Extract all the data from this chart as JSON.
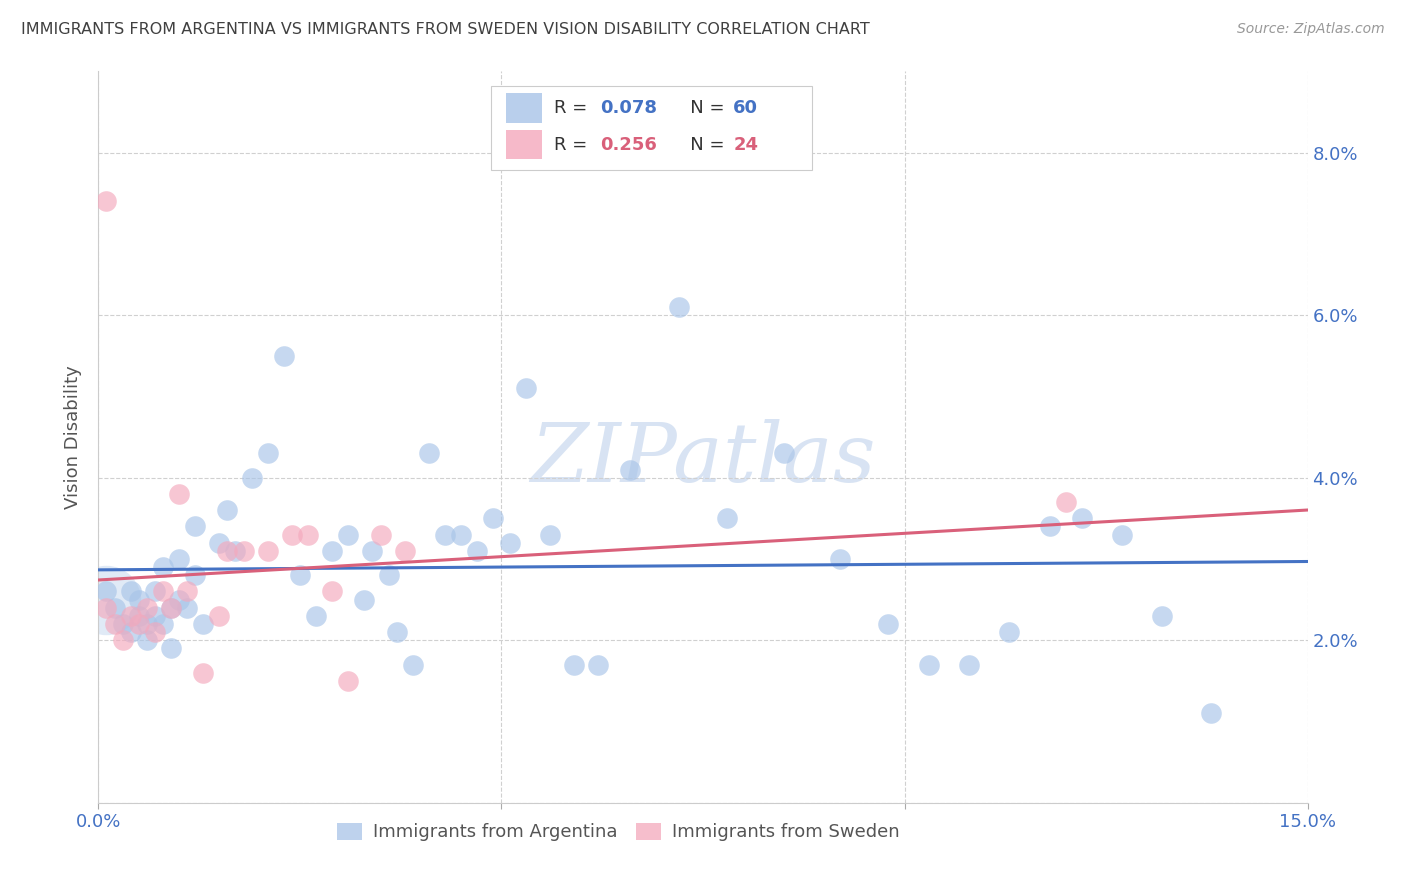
{
  "title": "IMMIGRANTS FROM ARGENTINA VS IMMIGRANTS FROM SWEDEN VISION DISABILITY CORRELATION CHART",
  "source": "Source: ZipAtlas.com",
  "ylabel": "Vision Disability",
  "xlim": [
    0.0,
    0.15
  ],
  "ylim": [
    0.0,
    0.09
  ],
  "xticks": [
    0.0,
    0.05,
    0.1,
    0.15
  ],
  "xticklabels": [
    "0.0%",
    "",
    "",
    "15.0%"
  ],
  "yticks": [
    0.0,
    0.02,
    0.04,
    0.06,
    0.08
  ],
  "right_yticklabels": [
    "",
    "2.0%",
    "4.0%",
    "6.0%",
    "8.0%"
  ],
  "argentina_color": "#a8c4e8",
  "sweden_color": "#f4a8bc",
  "argentina_line_color": "#4472c4",
  "sweden_line_color": "#d9607a",
  "argentina_R": 0.078,
  "argentina_N": 60,
  "sweden_R": 0.256,
  "sweden_N": 24,
  "watermark": "ZIPatlas",
  "argentina_x": [
    0.001,
    0.002,
    0.003,
    0.004,
    0.004,
    0.005,
    0.005,
    0.006,
    0.006,
    0.007,
    0.007,
    0.008,
    0.008,
    0.009,
    0.009,
    0.01,
    0.01,
    0.011,
    0.012,
    0.012,
    0.013,
    0.015,
    0.016,
    0.017,
    0.019,
    0.021,
    0.023,
    0.025,
    0.027,
    0.029,
    0.031,
    0.033,
    0.034,
    0.036,
    0.037,
    0.039,
    0.041,
    0.043,
    0.045,
    0.047,
    0.049,
    0.051,
    0.053,
    0.056,
    0.059,
    0.062,
    0.066,
    0.072,
    0.078,
    0.085,
    0.092,
    0.098,
    0.103,
    0.108,
    0.113,
    0.118,
    0.122,
    0.127,
    0.132,
    0.138
  ],
  "argentina_y": [
    0.026,
    0.024,
    0.022,
    0.021,
    0.026,
    0.023,
    0.025,
    0.022,
    0.02,
    0.023,
    0.026,
    0.029,
    0.022,
    0.024,
    0.019,
    0.025,
    0.03,
    0.024,
    0.034,
    0.028,
    0.022,
    0.032,
    0.036,
    0.031,
    0.04,
    0.043,
    0.055,
    0.028,
    0.023,
    0.031,
    0.033,
    0.025,
    0.031,
    0.028,
    0.021,
    0.017,
    0.043,
    0.033,
    0.033,
    0.031,
    0.035,
    0.032,
    0.051,
    0.033,
    0.017,
    0.017,
    0.041,
    0.061,
    0.035,
    0.043,
    0.03,
    0.022,
    0.017,
    0.017,
    0.021,
    0.034,
    0.035,
    0.033,
    0.023,
    0.011
  ],
  "sweden_x": [
    0.001,
    0.002,
    0.003,
    0.004,
    0.005,
    0.006,
    0.007,
    0.008,
    0.009,
    0.01,
    0.011,
    0.013,
    0.015,
    0.016,
    0.018,
    0.021,
    0.024,
    0.026,
    0.029,
    0.031,
    0.035,
    0.038,
    0.12,
    0.001
  ],
  "sweden_y": [
    0.024,
    0.022,
    0.02,
    0.023,
    0.022,
    0.024,
    0.021,
    0.026,
    0.024,
    0.038,
    0.026,
    0.016,
    0.023,
    0.031,
    0.031,
    0.031,
    0.033,
    0.033,
    0.026,
    0.015,
    0.033,
    0.031,
    0.037,
    0.074
  ],
  "bg_color": "#ffffff",
  "grid_color": "#d0d0d0",
  "tick_color": "#4472c4",
  "title_color": "#404040",
  "axis_label_color": "#555555"
}
